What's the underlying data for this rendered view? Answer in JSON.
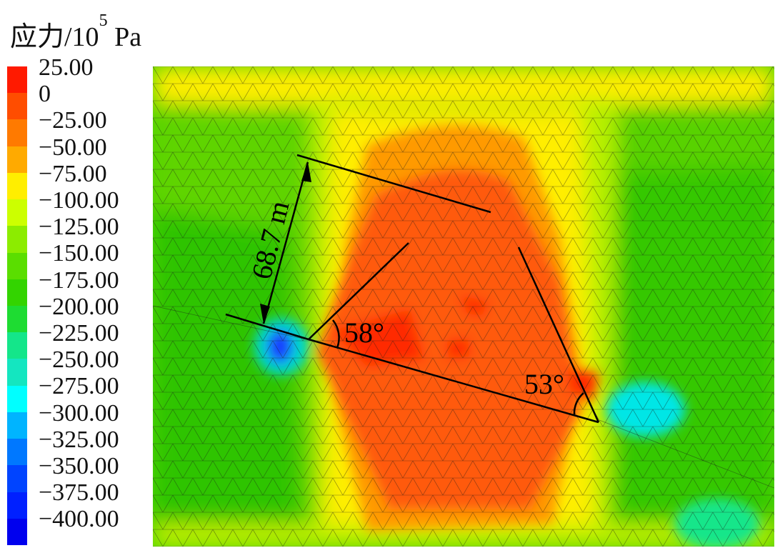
{
  "figure": {
    "title_main": "应力/10",
    "title_exp": "5",
    "title_unit": " Pa"
  },
  "colorbar": {
    "labels": [
      "25.00",
      "0",
      "−25.00",
      "−50.00",
      "−75.00",
      "−100.00",
      "−125.00",
      "−150.00",
      "−175.00",
      "−200.00",
      "−225.00",
      "−250.00",
      "−275.00",
      "−300.00",
      "−325.00",
      "−350.00",
      "−375.00",
      "−400.00"
    ],
    "colors": [
      "#ff1a00",
      "#ff4d00",
      "#ff7a00",
      "#ffaa00",
      "#ffee00",
      "#ccff00",
      "#8cec00",
      "#5ade00",
      "#33d400",
      "#1edc32",
      "#14e68a",
      "#14e6c0",
      "#00ffff",
      "#00b4ff",
      "#0078ff",
      "#0044ff",
      "#0020ff",
      "#0000ee"
    ]
  },
  "annotations": {
    "distance": "68.7 m",
    "angle_left": "58°",
    "angle_right": "53°"
  },
  "palette": {
    "yellow": "#ffee00",
    "yellow_green": "#b8f000",
    "green": "#52d400",
    "green_dark": "#33c800",
    "orange": "#ff9a00",
    "orange_red": "#ff5a0a",
    "red": "#ff2a00",
    "cyan": "#00e6e6",
    "blue": "#1440ff",
    "mesh": "#1a1a1a"
  }
}
